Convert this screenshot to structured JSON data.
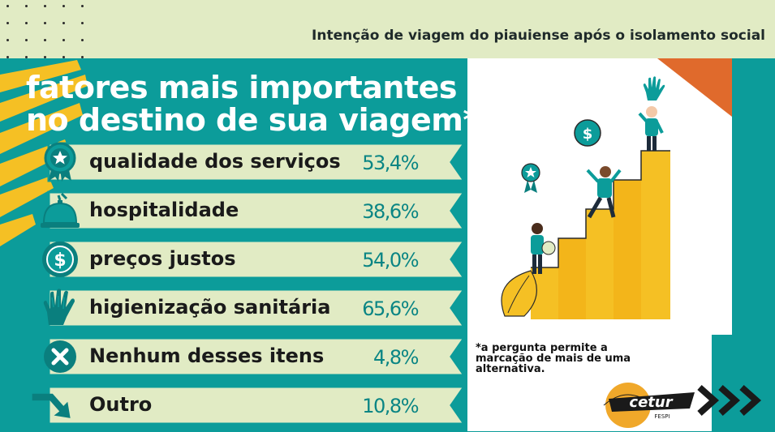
{
  "header": {
    "title": "Intenção de viagem do piauiense após o isolamento social"
  },
  "main": {
    "title_line1": "fatores mais importantes",
    "title_line2": "no destino de sua viagem*",
    "items": [
      {
        "label": "qualidade dos serviços",
        "value": "53,4%",
        "icon": "star-medal-icon"
      },
      {
        "label": "hospitalidade",
        "value": "38,6%",
        "icon": "service-bell-icon"
      },
      {
        "label": "preços justos",
        "value": "54,0%",
        "icon": "dollar-coin-icon"
      },
      {
        "label": "higienização sanitária",
        "value": "65,6%",
        "icon": "glove-icon"
      },
      {
        "label": "Nenhum desses itens",
        "value": "4,8%",
        "icon": "x-circle-icon"
      },
      {
        "label": "Outro",
        "value": "10,8%",
        "icon": "arrow-icon"
      }
    ]
  },
  "footnote": "*a pergunta permite a marcação de mais de uma alternativa.",
  "logo": {
    "text": "cetur",
    "subtext": "FESPI"
  },
  "colors": {
    "teal": "#0c9c9a",
    "cream": "#e1ebc4",
    "yellow": "#f5c024",
    "orange": "#e06a2c"
  }
}
